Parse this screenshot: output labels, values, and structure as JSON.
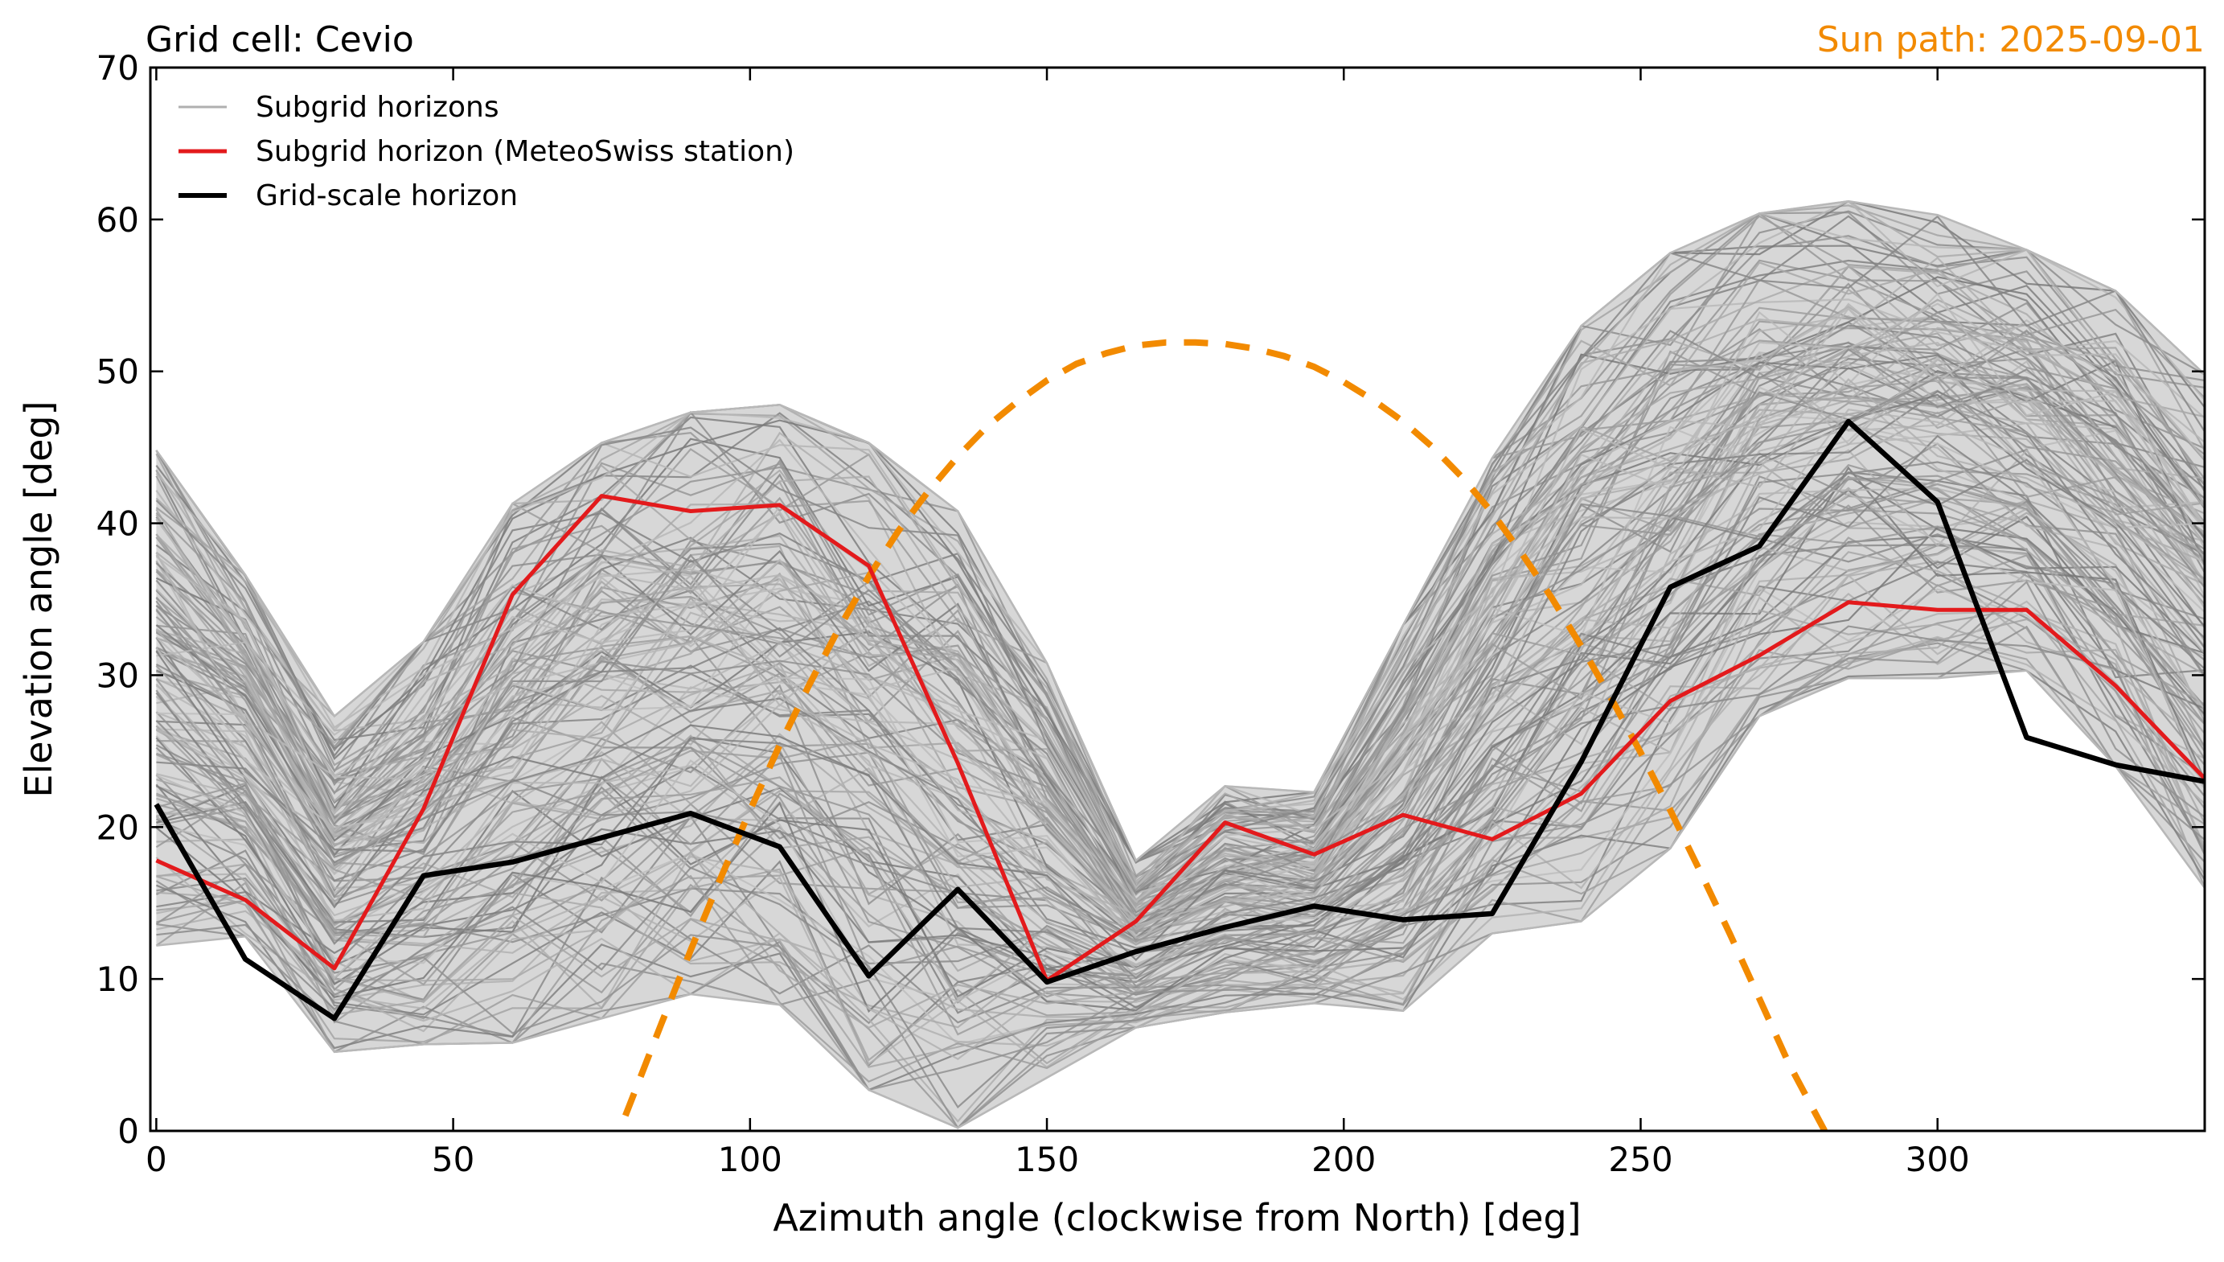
{
  "chart_data": {
    "type": "line",
    "title_left": "Grid cell: Cevio",
    "title_right": "Sun path: 2025-09-01",
    "xlabel": "Azimuth angle (clockwise from North) [deg]",
    "ylabel": "Elevation angle [deg]",
    "xlim": [
      -1,
      345
    ],
    "ylim": [
      0,
      70
    ],
    "xticks": [
      0,
      50,
      100,
      150,
      200,
      250,
      300
    ],
    "yticks": [
      0,
      10,
      20,
      30,
      40,
      50,
      60,
      70
    ],
    "legend_position": "upper-left",
    "x": [
      0,
      15,
      30,
      45,
      60,
      75,
      90,
      105,
      120,
      135,
      150,
      165,
      180,
      195,
      210,
      225,
      240,
      255,
      270,
      285,
      300,
      315,
      330,
      345
    ],
    "series": [
      {
        "name": "Subgrid horizons",
        "color": "#b0b0b0",
        "style": "ensemble",
        "envelope_lower": [
          12.2,
          12.8,
          5.2,
          5.7,
          5.8,
          7.4,
          9.0,
          8.3,
          2.7,
          0.2,
          3.5,
          6.8,
          7.8,
          8.4,
          7.9,
          13.0,
          13.8,
          18.6,
          27.3,
          29.8,
          29.8,
          30.3,
          24.0,
          16.0
        ],
        "envelope_upper": [
          44.8,
          36.6,
          27.3,
          32.2,
          41.3,
          45.3,
          47.3,
          47.8,
          45.3,
          40.8,
          30.8,
          17.8,
          22.7,
          22.3,
          33.3,
          44.3,
          53.0,
          57.8,
          60.4,
          61.2,
          60.3,
          58.0,
          55.3,
          49.8
        ]
      },
      {
        "name": "Subgrid horizon (MeteoSwiss station)",
        "color": "#e31a1c",
        "values": [
          17.8,
          15.2,
          10.7,
          21.2,
          35.3,
          41.8,
          40.8,
          41.2,
          37.2,
          24.2,
          9.9,
          13.8,
          20.3,
          18.2,
          20.8,
          19.2,
          22.2,
          28.3,
          31.3,
          34.8,
          34.3,
          34.3,
          29.3,
          23.2
        ]
      },
      {
        "name": "Grid-scale horizon",
        "color": "#000000",
        "values": [
          21.5,
          11.3,
          7.4,
          16.8,
          17.7,
          19.3,
          20.9,
          18.7,
          10.2,
          15.9,
          9.8,
          11.8,
          13.4,
          14.8,
          13.9,
          14.3,
          24.3,
          35.8,
          38.5,
          46.7,
          41.4,
          25.9,
          24.1,
          23.0
        ]
      },
      {
        "name": "Sun path",
        "color": "#f28a00",
        "style": "dashed",
        "x": [
          79,
          85,
          90,
          95,
          100,
          105,
          110,
          115,
          120,
          125,
          130,
          135,
          140,
          145,
          150,
          155,
          160,
          165,
          170,
          175,
          180,
          185,
          190,
          195,
          200,
          205,
          210,
          215,
          220,
          225,
          230,
          235,
          240,
          245,
          250,
          255,
          260,
          265,
          270,
          275,
          281
        ],
        "values": [
          1.0,
          7.0,
          11.9,
          16.6,
          21.1,
          25.4,
          29.4,
          33.1,
          36.5,
          39.5,
          42.1,
          44.4,
          46.4,
          48.0,
          49.4,
          50.5,
          51.2,
          51.7,
          51.9,
          51.9,
          51.8,
          51.5,
          51.0,
          50.3,
          49.3,
          48.1,
          46.7,
          45.0,
          43.0,
          40.7,
          38.0,
          35.1,
          31.9,
          28.5,
          24.9,
          21.1,
          17.1,
          13.0,
          8.7,
          4.4,
          0.0
        ]
      }
    ]
  }
}
